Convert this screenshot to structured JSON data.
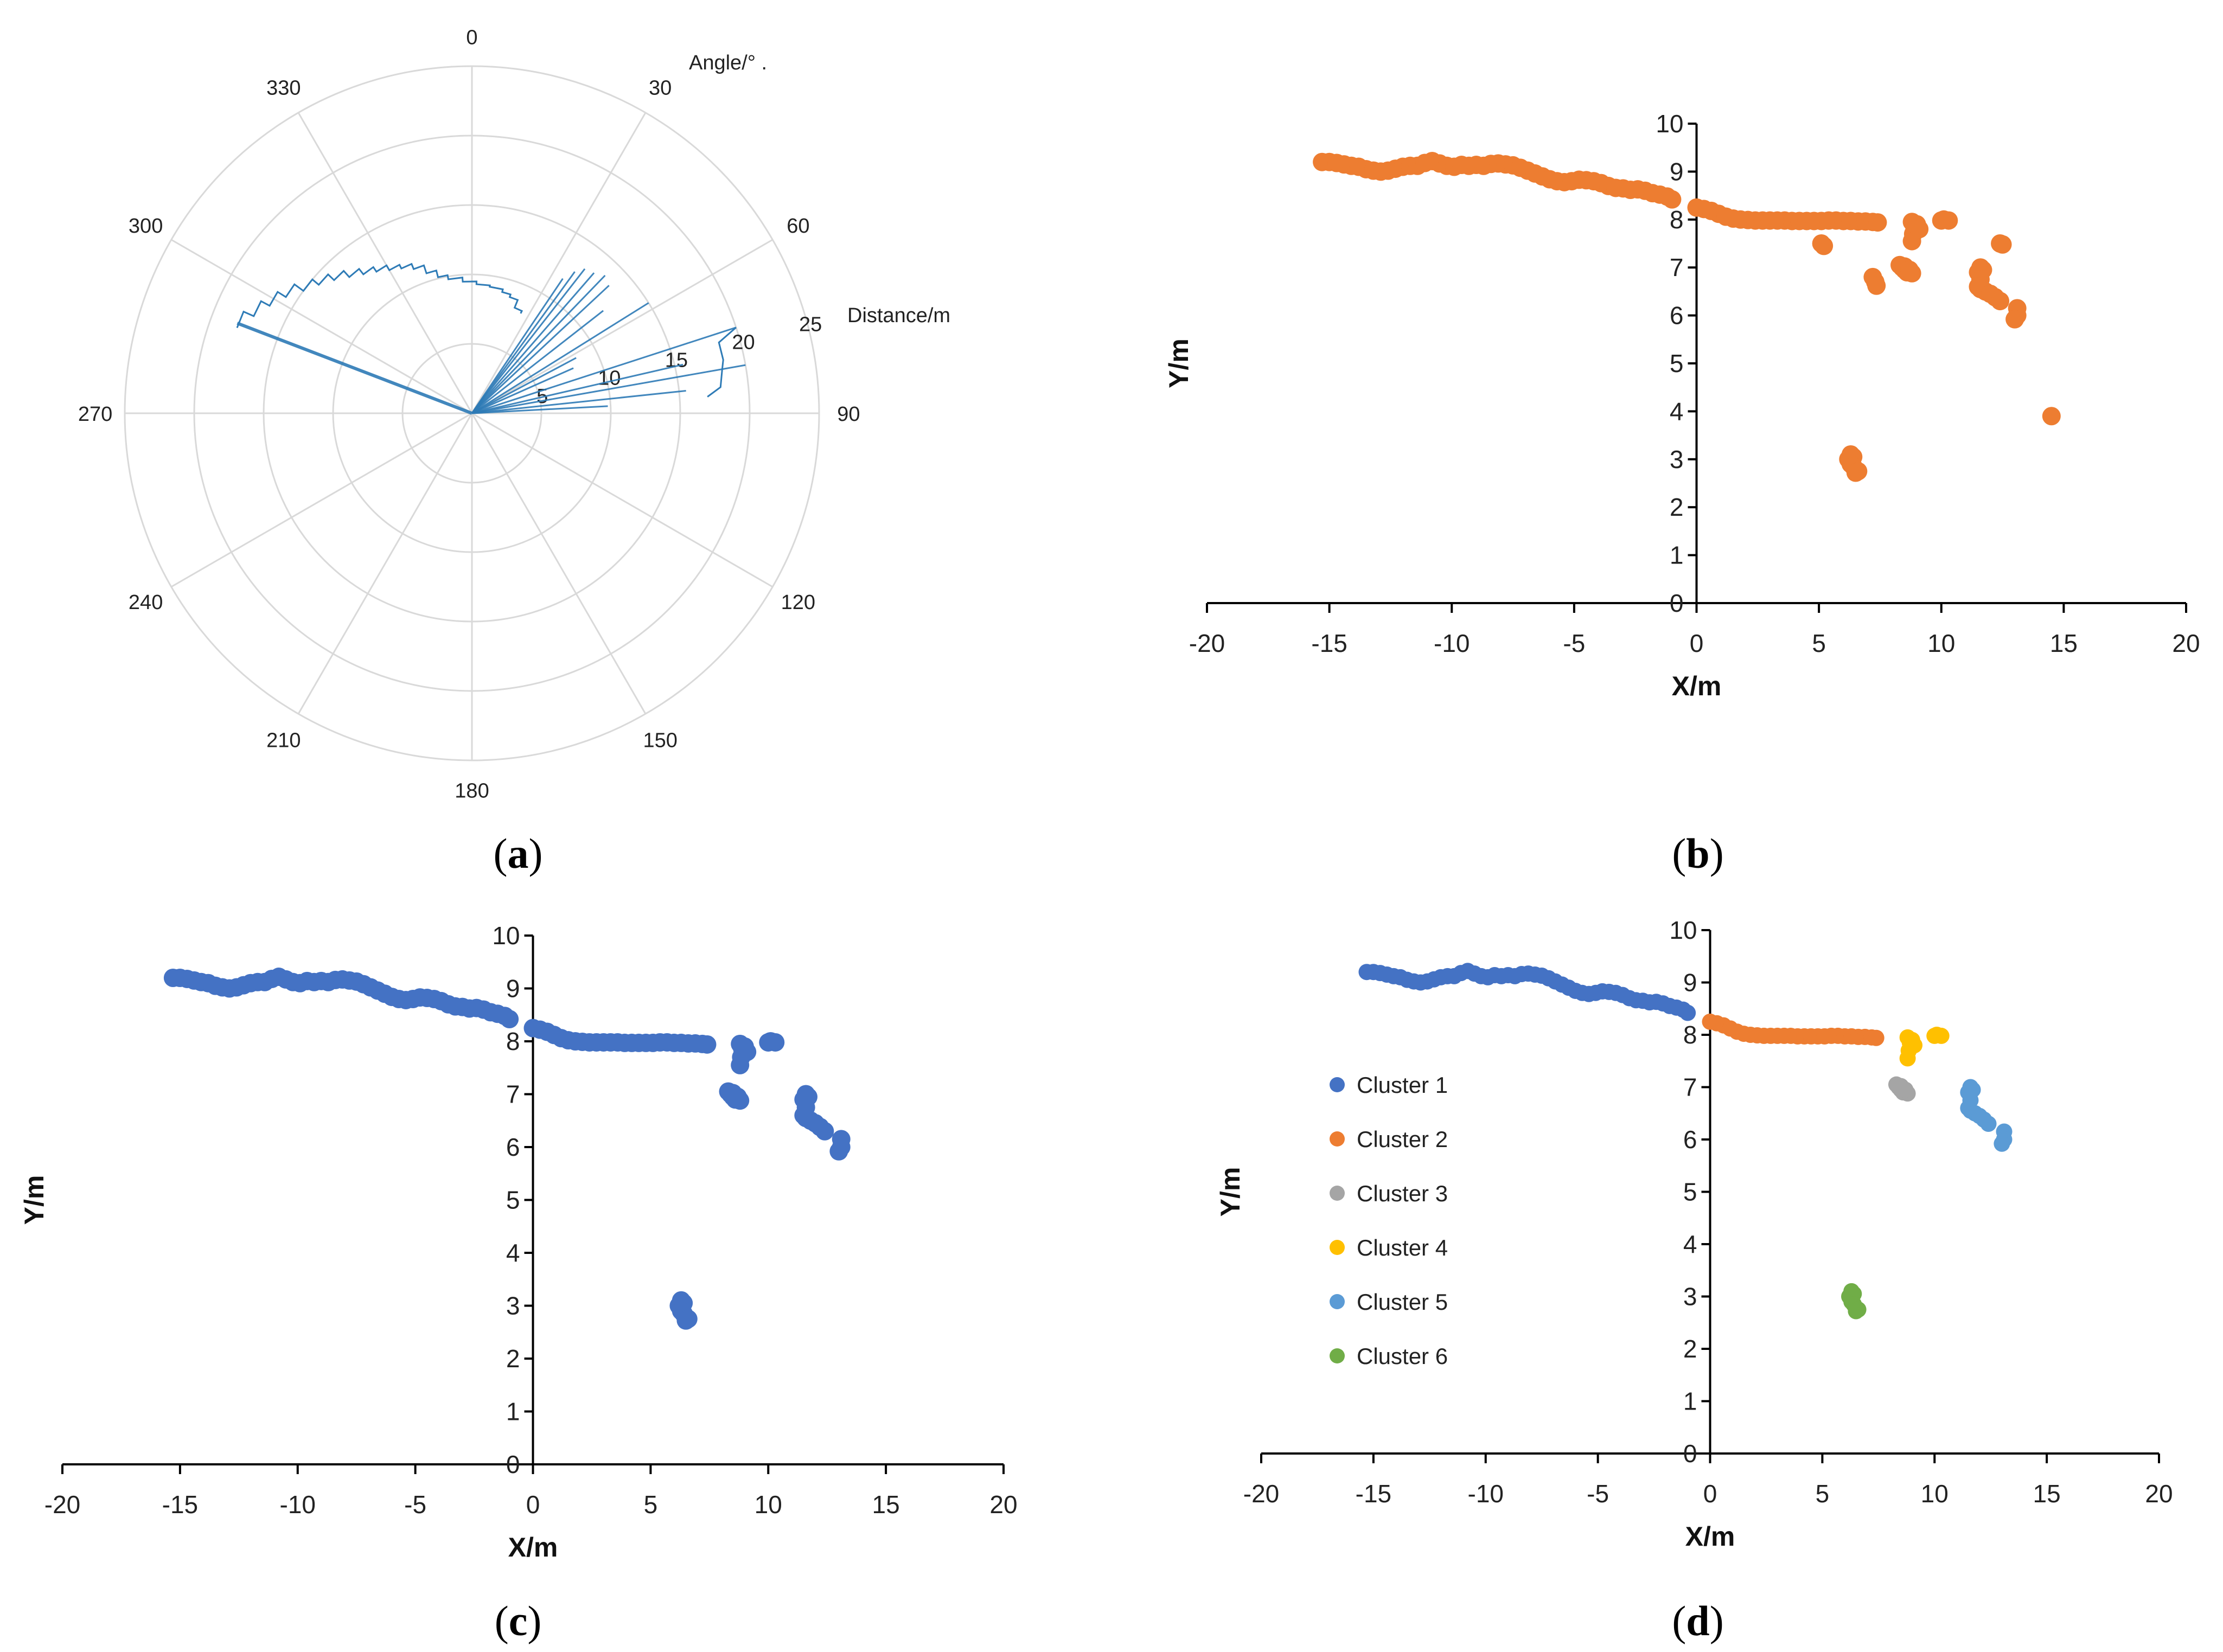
{
  "panels": [
    {
      "id": "a",
      "label": "a"
    },
    {
      "id": "b",
      "label": "b"
    },
    {
      "id": "c",
      "label": "c"
    },
    {
      "id": "d",
      "label": "d"
    }
  ],
  "chart_data": [
    {
      "panel": "a",
      "type": "polar",
      "angle_label": "Angle/° .",
      "distance_label": "Distance/m",
      "angle_ticks": [
        0,
        30,
        60,
        90,
        120,
        150,
        180,
        210,
        240,
        270,
        300,
        330
      ],
      "radial_ticks": [
        5,
        10,
        15,
        20,
        25
      ],
      "rmax": 25,
      "color": "#2E7BB6",
      "scan_points": [
        {
          "angle": 290,
          "r": 18.0
        },
        {
          "angle": 294,
          "r": 17.2
        },
        {
          "angle": 298,
          "r": 16.5
        },
        {
          "angle": 302,
          "r": 15.8
        },
        {
          "angle": 306,
          "r": 15.0
        },
        {
          "angle": 310,
          "r": 14.4
        },
        {
          "angle": 314,
          "r": 13.8
        },
        {
          "angle": 318,
          "r": 13.2
        },
        {
          "angle": 322,
          "r": 12.7
        },
        {
          "angle": 326,
          "r": 12.3
        },
        {
          "angle": 330,
          "r": 11.9
        },
        {
          "angle": 334,
          "r": 11.6
        },
        {
          "angle": 338,
          "r": 11.2
        },
        {
          "angle": 342,
          "r": 10.6
        },
        {
          "angle": 346,
          "r": 10.1
        },
        {
          "angle": 350,
          "r": 9.8
        },
        {
          "angle": 356,
          "r": 9.5
        },
        {
          "angle": 2,
          "r": 9.3
        },
        {
          "angle": 8,
          "r": 9.2
        },
        {
          "angle": 14,
          "r": 9.0
        },
        {
          "angle": 18,
          "r": 8.8
        },
        {
          "angle": 22,
          "r": 8.2
        },
        {
          "angle": 26,
          "r": 8.0
        }
      ],
      "rays": [
        {
          "angle": 291,
          "r": 18.1
        },
        {
          "angle": 34,
          "r": 11.7
        },
        {
          "angle": 36,
          "r": 12.6
        },
        {
          "angle": 38,
          "r": 13.2
        },
        {
          "angle": 41,
          "r": 13.4
        },
        {
          "angle": 44,
          "r": 13.8
        },
        {
          "angle": 47,
          "r": 13.5
        },
        {
          "angle": 52,
          "r": 12.0
        },
        {
          "angle": 58,
          "r": 15.0
        },
        {
          "angle": 62,
          "r": 8.5
        },
        {
          "angle": 66,
          "r": 8.0
        },
        {
          "angle": 72,
          "r": 20.0
        },
        {
          "angle": 77,
          "r": 15.6
        },
        {
          "angle": 80,
          "r": 20.0
        },
        {
          "angle": 84,
          "r": 15.5
        },
        {
          "angle": 87,
          "r": 9.8
        }
      ]
    },
    {
      "panel": "b",
      "type": "scatter",
      "xlabel": "X/m",
      "ylabel": "Y/m",
      "xlim": [
        -20,
        20
      ],
      "ylim": [
        0,
        10
      ],
      "xticks": [
        -20,
        -15,
        -10,
        -5,
        0,
        5,
        10,
        15,
        20
      ],
      "yticks": [
        0,
        1,
        2,
        3,
        4,
        5,
        6,
        7,
        8,
        9,
        10
      ],
      "mode": "single",
      "single_color": "#ED7D31"
    },
    {
      "panel": "c",
      "type": "scatter",
      "xlabel": "X/m",
      "ylabel": "Y/m",
      "xlim": [
        -20,
        20
      ],
      "ylim": [
        0,
        10
      ],
      "xticks": [
        -20,
        -15,
        -10,
        -5,
        0,
        5,
        10,
        15,
        20
      ],
      "yticks": [
        0,
        1,
        2,
        3,
        4,
        5,
        6,
        7,
        8,
        9,
        10
      ],
      "mode": "single",
      "single_color": "#4472C4"
    },
    {
      "panel": "d",
      "type": "scatter",
      "xlabel": "X/m",
      "ylabel": "Y/m",
      "xlim": [
        -20,
        20
      ],
      "ylim": [
        0,
        10
      ],
      "xticks": [
        -20,
        -15,
        -10,
        -5,
        0,
        5,
        10,
        15,
        20
      ],
      "yticks": [
        0,
        1,
        2,
        3,
        4,
        5,
        6,
        7,
        8,
        9,
        10
      ],
      "mode": "clusters",
      "legend_position": "center-left",
      "series": [
        {
          "name": "Cluster 1",
          "color": "#4472C4"
        },
        {
          "name": "Cluster 2",
          "color": "#ED7D31"
        },
        {
          "name": "Cluster 3",
          "color": "#A5A5A5"
        },
        {
          "name": "Cluster 4",
          "color": "#FFC000"
        },
        {
          "name": "Cluster 5",
          "color": "#5B9BD5"
        },
        {
          "name": "Cluster 6",
          "color": "#70AD47"
        }
      ]
    }
  ],
  "scan_data": {
    "cluster1": [
      [
        -15.3,
        9.2
      ],
      [
        -15.0,
        9.2
      ],
      [
        -14.7,
        9.18
      ],
      [
        -14.4,
        9.15
      ],
      [
        -14.1,
        9.12
      ],
      [
        -13.8,
        9.1
      ],
      [
        -13.5,
        9.05
      ],
      [
        -13.2,
        9.02
      ],
      [
        -12.9,
        9.0
      ],
      [
        -12.6,
        9.02
      ],
      [
        -12.3,
        9.06
      ],
      [
        -12.0,
        9.1
      ],
      [
        -11.7,
        9.12
      ],
      [
        -11.4,
        9.12
      ],
      [
        -11.1,
        9.18
      ],
      [
        -10.8,
        9.22
      ],
      [
        -10.5,
        9.17
      ],
      [
        -10.2,
        9.12
      ],
      [
        -9.9,
        9.1
      ],
      [
        -9.6,
        9.14
      ],
      [
        -9.3,
        9.12
      ],
      [
        -9.0,
        9.14
      ],
      [
        -8.7,
        9.12
      ],
      [
        -8.4,
        9.16
      ],
      [
        -8.1,
        9.17
      ],
      [
        -7.8,
        9.15
      ],
      [
        -7.5,
        9.13
      ],
      [
        -7.2,
        9.08
      ],
      [
        -6.9,
        9.02
      ],
      [
        -6.6,
        8.96
      ],
      [
        -6.3,
        8.9
      ],
      [
        -6.0,
        8.84
      ],
      [
        -5.7,
        8.8
      ],
      [
        -5.4,
        8.78
      ],
      [
        -5.1,
        8.8
      ],
      [
        -4.8,
        8.83
      ],
      [
        -4.5,
        8.82
      ],
      [
        -4.2,
        8.8
      ],
      [
        -3.9,
        8.76
      ],
      [
        -3.6,
        8.7
      ],
      [
        -3.3,
        8.66
      ],
      [
        -3.0,
        8.65
      ],
      [
        -2.7,
        8.62
      ],
      [
        -2.4,
        8.63
      ],
      [
        -2.1,
        8.6
      ],
      [
        -1.8,
        8.55
      ],
      [
        -1.5,
        8.52
      ],
      [
        -1.2,
        8.48
      ],
      [
        -1.0,
        8.42
      ]
    ],
    "cluster2": [
      [
        0.0,
        8.25
      ],
      [
        0.3,
        8.22
      ],
      [
        0.6,
        8.18
      ],
      [
        0.9,
        8.12
      ],
      [
        1.2,
        8.06
      ],
      [
        1.5,
        8.02
      ],
      [
        1.8,
        8.0
      ],
      [
        2.1,
        7.99
      ],
      [
        2.4,
        7.98
      ],
      [
        2.7,
        7.98
      ],
      [
        3.0,
        7.98
      ],
      [
        3.3,
        7.98
      ],
      [
        3.6,
        7.98
      ],
      [
        3.9,
        7.97
      ],
      [
        4.2,
        7.97
      ],
      [
        4.5,
        7.97
      ],
      [
        4.8,
        7.97
      ],
      [
        5.1,
        7.97
      ],
      [
        5.4,
        7.98
      ],
      [
        5.7,
        7.98
      ],
      [
        6.0,
        7.97
      ],
      [
        6.3,
        7.97
      ],
      [
        6.6,
        7.96
      ],
      [
        6.9,
        7.96
      ],
      [
        7.2,
        7.95
      ],
      [
        7.4,
        7.94
      ]
    ],
    "cluster3": [
      [
        8.3,
        7.05
      ],
      [
        8.4,
        7.0
      ],
      [
        8.5,
        6.95
      ],
      [
        8.6,
        6.9
      ],
      [
        8.7,
        6.9
      ],
      [
        8.8,
        6.88
      ],
      [
        8.5,
        7.02
      ],
      [
        8.7,
        6.95
      ]
    ],
    "cluster4": [
      [
        8.8,
        7.95
      ],
      [
        8.9,
        7.85
      ],
      [
        8.85,
        7.7
      ],
      [
        8.8,
        7.55
      ],
      [
        9.0,
        7.9
      ],
      [
        9.1,
        7.8
      ],
      [
        10.0,
        7.98
      ],
      [
        10.3,
        7.98
      ],
      [
        10.1,
        8.0
      ]
    ],
    "cluster5": [
      [
        11.5,
        6.9
      ],
      [
        11.6,
        7.0
      ],
      [
        11.7,
        6.95
      ],
      [
        11.6,
        6.75
      ],
      [
        11.5,
        6.6
      ],
      [
        11.6,
        6.55
      ],
      [
        11.8,
        6.5
      ],
      [
        12.0,
        6.45
      ],
      [
        12.2,
        6.38
      ],
      [
        12.4,
        6.3
      ],
      [
        13.1,
        6.15
      ],
      [
        13.1,
        6.0
      ],
      [
        13.0,
        5.92
      ]
    ],
    "cluster6": [
      [
        6.2,
        3.0
      ],
      [
        6.3,
        3.1
      ],
      [
        6.4,
        3.05
      ],
      [
        6.3,
        2.9
      ],
      [
        6.4,
        2.85
      ],
      [
        6.5,
        2.78
      ],
      [
        6.6,
        2.75
      ],
      [
        6.5,
        2.72
      ]
    ],
    "extra_b": [
      [
        5.1,
        7.5
      ],
      [
        5.2,
        7.45
      ],
      [
        7.2,
        6.8
      ],
      [
        7.3,
        6.7
      ],
      [
        7.35,
        6.62
      ],
      [
        12.4,
        7.5
      ],
      [
        12.5,
        7.48
      ],
      [
        14.5,
        3.9
      ]
    ]
  }
}
